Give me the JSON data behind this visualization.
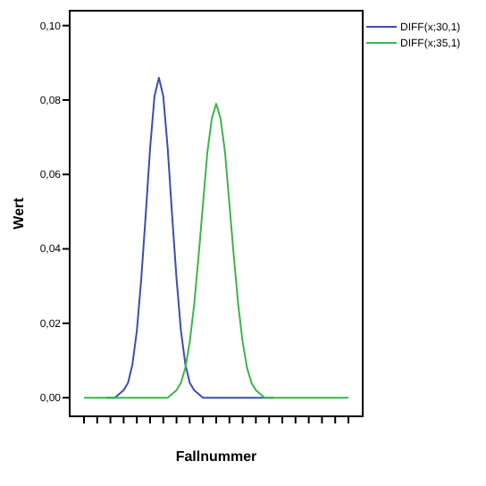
{
  "chart_data": {
    "type": "line",
    "xlabel": "Fallnummer",
    "ylabel": "Wert",
    "categories": [
      null,
      null,
      null,
      null,
      null,
      null,
      null,
      null,
      null,
      null,
      null,
      null,
      null,
      null,
      null,
      null,
      null,
      null,
      null,
      null,
      null,
      null,
      null,
      null,
      null,
      null,
      null,
      null,
      null,
      null,
      null,
      null,
      null,
      null,
      null,
      null,
      null,
      null,
      null,
      null,
      null,
      null,
      null,
      null,
      null,
      null,
      null,
      null,
      null,
      null,
      null,
      null,
      null,
      null,
      null,
      null,
      null,
      null,
      null,
      null,
      null
    ],
    "ylim": [
      -0.005,
      0.104
    ],
    "yticks": [
      {
        "value": 0,
        "label": "0,00"
      },
      {
        "value": 0.02,
        "label": "0,02"
      },
      {
        "value": 0.04,
        "label": "0,04"
      },
      {
        "value": 0.06,
        "label": "0,06"
      },
      {
        "value": 0.08,
        "label": "0,08"
      },
      {
        "value": 0.1,
        "label": "0,10"
      }
    ],
    "grid": false,
    "legend": "top right",
    "series": [
      {
        "name": "DIFF(x;30,1)",
        "color": "#3a4fb0",
        "values": [
          null,
          null,
          null,
          null,
          null,
          0,
          0,
          0,
          0.001,
          0.002,
          0.004,
          0.009,
          0.018,
          0.032,
          0.049,
          0.067,
          0.081,
          0.086,
          0.081,
          0.067,
          0.049,
          0.032,
          0.018,
          0.009,
          0.004,
          0.002,
          0.001,
          0,
          0,
          0,
          0,
          0,
          0,
          0,
          0,
          0,
          0,
          0,
          0,
          0,
          0,
          0,
          0,
          0,
          null,
          null,
          null,
          null,
          null,
          null,
          null,
          null,
          null,
          null,
          null,
          null,
          null,
          null,
          null,
          null,
          null
        ]
      },
      {
        "name": "DIFF(x;35,1)",
        "color": "#3cb54a",
        "values": [
          0,
          0,
          0,
          0,
          0,
          0,
          0,
          0,
          0,
          0,
          0,
          0,
          0,
          0,
          0,
          0,
          0,
          0,
          0,
          0,
          0.001,
          0.002,
          0.004,
          0.008,
          0.015,
          0.025,
          0.038,
          0.052,
          0.066,
          0.075,
          0.079,
          0.075,
          0.066,
          0.052,
          0.038,
          0.025,
          0.015,
          0.008,
          0.004,
          0.002,
          0.001,
          0,
          0,
          0,
          0,
          0,
          0,
          0,
          0,
          0,
          0,
          0,
          0,
          0,
          0,
          0,
          0,
          0,
          0,
          0,
          0
        ]
      }
    ]
  }
}
